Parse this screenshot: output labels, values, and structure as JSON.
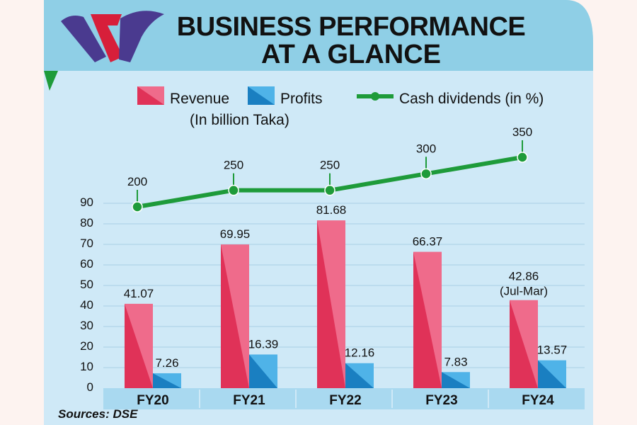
{
  "chart_data": {
    "type": "bar+line",
    "title": "BUSINESS PERFORMANCE AT A GLANCE",
    "title_lines": [
      "BUSINESS PERFORMANCE",
      "AT A GLANCE"
    ],
    "categories": [
      "FY20",
      "FY21",
      "FY22",
      "FY23",
      "FY24"
    ],
    "series": [
      {
        "name": "Revenue",
        "kind": "bar",
        "values": [
          41.07,
          69.95,
          81.68,
          66.37,
          42.86
        ],
        "labels": [
          "41.07",
          "69.95",
          "81.68",
          "66.37",
          "42.86"
        ]
      },
      {
        "name": "Profits",
        "kind": "bar",
        "values": [
          7.26,
          16.39,
          12.16,
          7.83,
          13.57
        ],
        "labels": [
          "7.26",
          "16.39",
          "12.16",
          "7.83",
          "13.57"
        ]
      },
      {
        "name": "Cash dividends (in %)",
        "kind": "line",
        "values": [
          200,
          250,
          250,
          300,
          350
        ],
        "labels": [
          "200",
          "250",
          "250",
          "300",
          "350"
        ]
      }
    ],
    "annotations": [
      {
        "category": "FY24",
        "series": "Revenue",
        "text": "(Jul-Mar)"
      }
    ],
    "units_note": "(In billion Taka)",
    "y_ticks": [
      0,
      10,
      20,
      30,
      40,
      50,
      60,
      70,
      80,
      90
    ],
    "ylim": [
      0,
      90
    ],
    "dividend_range": [
      200,
      350
    ],
    "legend_labels": {
      "revenue": "Revenue",
      "profits": "Profits",
      "dividends": "Cash dividends (in %)"
    },
    "source": "Sources: DSE"
  },
  "colors": {
    "revenue_light": "#ef6b8b",
    "revenue_dark": "#e03258",
    "profit_light": "#4fb3e8",
    "profit_dark": "#1a7fc1",
    "dividend_line": "#1e9b3a",
    "header_bg": "#8fcfe6",
    "plot_bg": "#cfe9f7",
    "axis_bg": "#a9d9f0",
    "text": "#111111"
  }
}
